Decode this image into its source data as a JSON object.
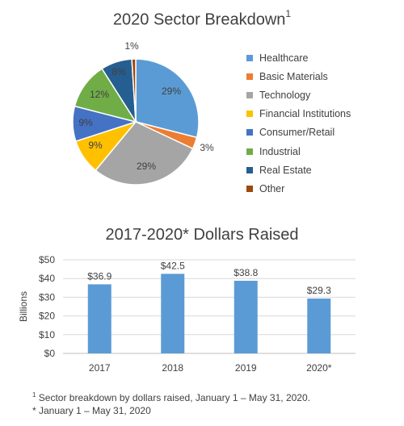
{
  "pie_chart": {
    "title": "2020 Sector Breakdown",
    "title_superscript": "1"
  },
  "bar_chart": {
    "title": "2017-2020* Dollars Raised"
  },
  "chart_data": [
    {
      "type": "pie",
      "title": "2020 Sector Breakdown",
      "labels": [
        "Healthcare",
        "Basic Materials",
        "Technology",
        "Financial Institutions",
        "Consumer/Retail",
        "Industrial",
        "Real Estate",
        "Other"
      ],
      "values": [
        29,
        3,
        29,
        9,
        9,
        12,
        8,
        1
      ],
      "value_labels": [
        "29%",
        "3%",
        "29%",
        "9%",
        "9%",
        "12%",
        "8%",
        "1%"
      ],
      "colors": [
        "#5B9BD5",
        "#ED7D31",
        "#A5A5A5",
        "#FFC000",
        "#4472C4",
        "#70AD47",
        "#255E91",
        "#9E480E"
      ],
      "legend_position": "right"
    },
    {
      "type": "bar",
      "title": "2017-2020* Dollars Raised",
      "categories": [
        "2017",
        "2018",
        "2019",
        "2020*"
      ],
      "values": [
        36.9,
        42.5,
        38.8,
        29.3
      ],
      "value_labels": [
        "$36.9",
        "$42.5",
        "$38.8",
        "$29.3"
      ],
      "ylabel": "Billions",
      "ylim": [
        0,
        50
      ],
      "yticks": [
        0,
        10,
        20,
        30,
        40,
        50
      ],
      "ytick_labels": [
        "$0",
        "$10",
        "$20",
        "$30",
        "$40",
        "$50"
      ],
      "bar_color": "#5B9BD5",
      "grid": true
    }
  ],
  "footnotes": {
    "note1_marker": "1",
    "note1_text": " Sector breakdown by dollars raised, January 1 – May 31, 2020.",
    "note2_text": "* January 1 – May 31, 2020"
  }
}
